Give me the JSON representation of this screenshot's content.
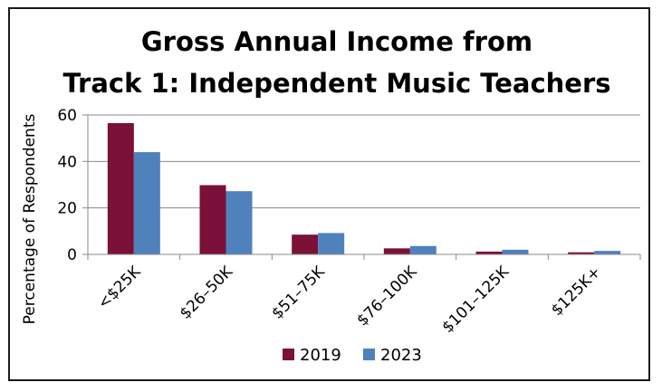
{
  "chart_data": {
    "type": "bar",
    "title_lines": [
      "Gross Annual Income from",
      "Track 1: Independent Music Teachers"
    ],
    "xlabel": "",
    "ylabel": "Percentage of Respondents",
    "ylim": [
      0,
      60
    ],
    "yticks": [
      "0",
      "20",
      "40",
      "60"
    ],
    "grid": true,
    "legend_position": "bottom",
    "categories": [
      "<$25K",
      "$26–50K",
      "$51–75K",
      "$76–100K",
      "$101–125K",
      "$125K+"
    ],
    "series": [
      {
        "name": "2019",
        "color": "#7b1136",
        "values": [
          56.5,
          29.8,
          8.5,
          2.6,
          1.2,
          0.9
        ]
      },
      {
        "name": "2023",
        "color": "#4f81bd",
        "values": [
          44,
          27.2,
          9.2,
          3.6,
          2.0,
          1.5
        ]
      }
    ]
  }
}
